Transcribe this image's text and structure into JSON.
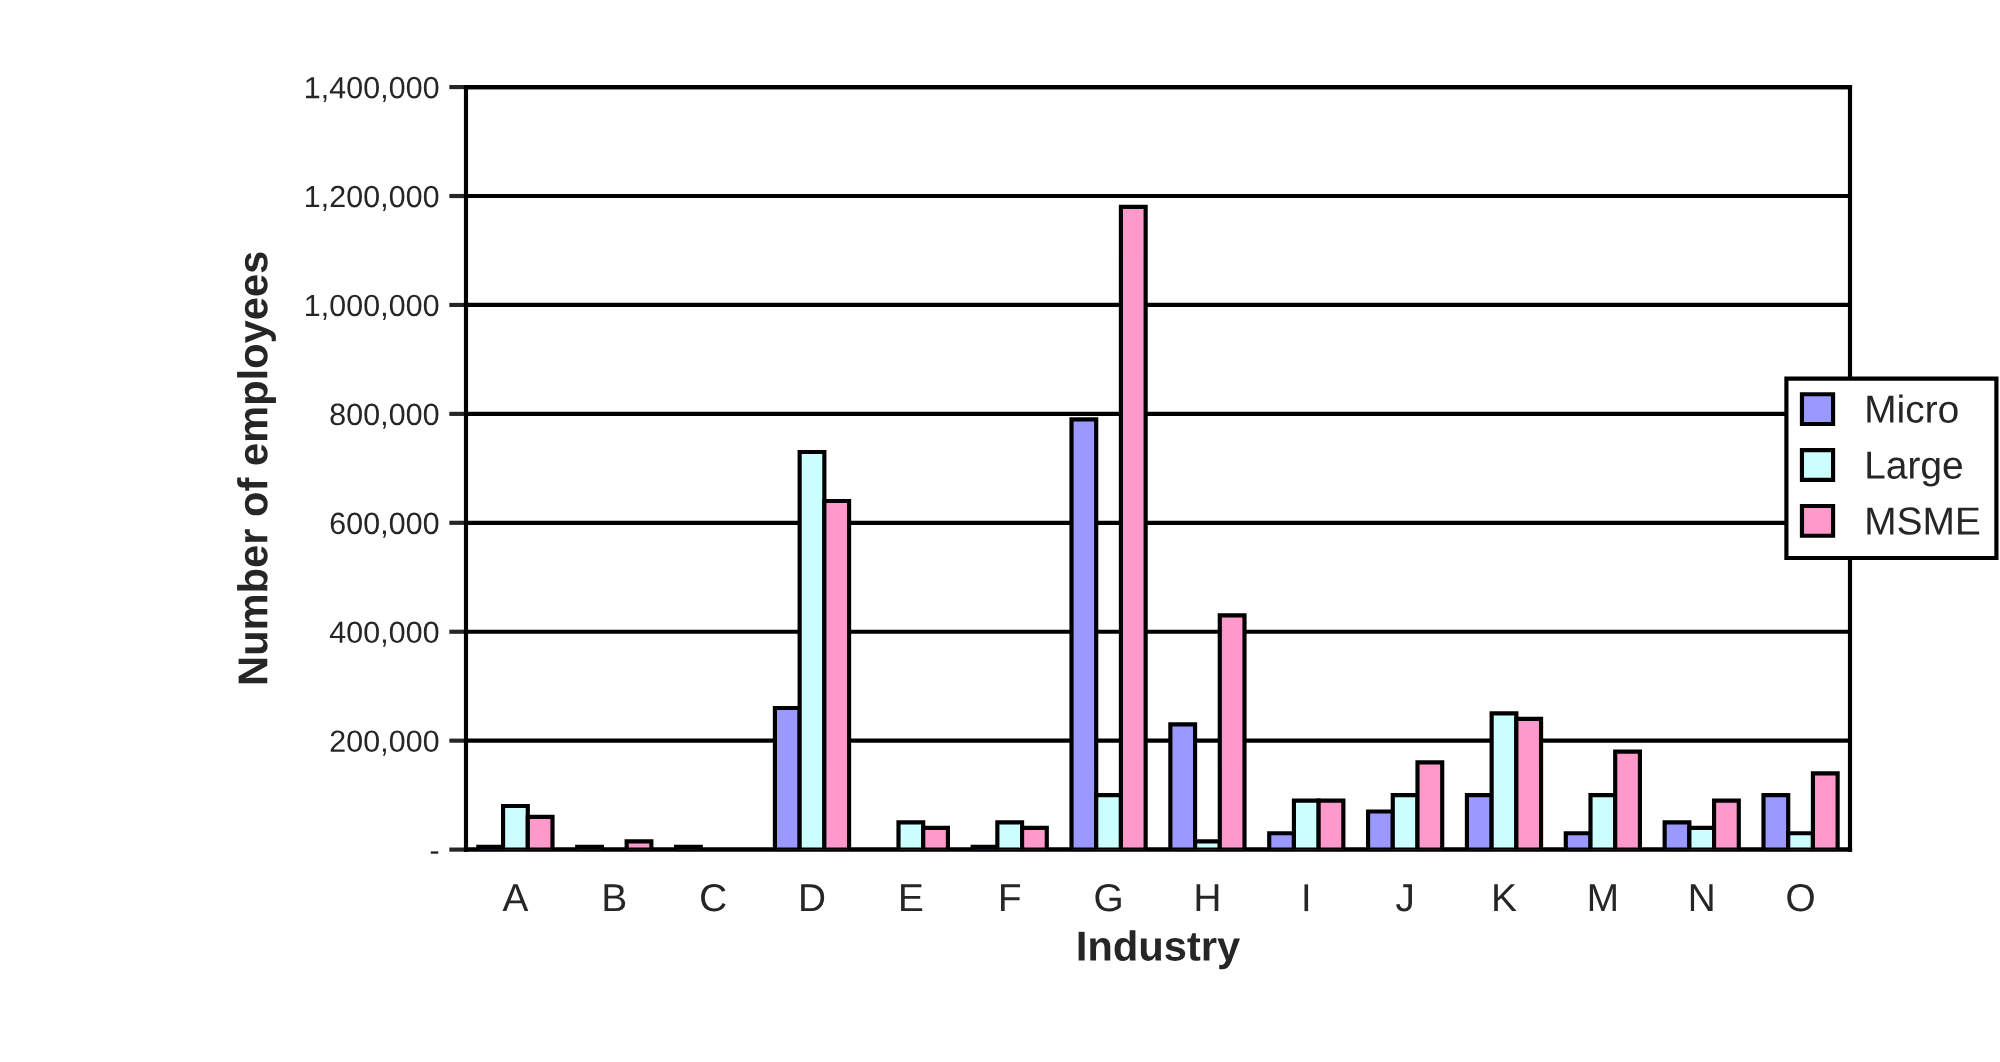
{
  "chart_data": {
    "type": "bar",
    "xlabel": "Industry",
    "ylabel": "Number of employees",
    "categories": [
      "A",
      "B",
      "C",
      "D",
      "E",
      "F",
      "G",
      "H",
      "I",
      "J",
      "K",
      "M",
      "N",
      "O"
    ],
    "series": [
      {
        "name": "Micro",
        "color": "#9999ff",
        "values": [
          5000,
          5000,
          5000,
          260000,
          null,
          5000,
          790000,
          230000,
          30000,
          70000,
          100000,
          30000,
          50000,
          100000
        ]
      },
      {
        "name": "Large",
        "color": "#ccffff",
        "values": [
          80000,
          null,
          null,
          730000,
          50000,
          50000,
          100000,
          15000,
          90000,
          100000,
          250000,
          100000,
          40000,
          30000
        ]
      },
      {
        "name": "MSME",
        "color": "#ff99cc",
        "values": [
          60000,
          15000,
          null,
          640000,
          40000,
          40000,
          1180000,
          430000,
          90000,
          160000,
          240000,
          180000,
          90000,
          140000
        ]
      }
    ],
    "ylim": [
      0,
      1400000
    ],
    "yticks": [
      {
        "value": 0,
        "label": "-"
      },
      {
        "value": 200000,
        "label": "200,000"
      },
      {
        "value": 400000,
        "label": "400,000"
      },
      {
        "value": 600000,
        "label": "600,000"
      },
      {
        "value": 800000,
        "label": "800,000"
      },
      {
        "value": 1000000,
        "label": "1,000,000"
      },
      {
        "value": 1200000,
        "label": "1,200,000"
      },
      {
        "value": 1400000,
        "label": "1,400,000"
      }
    ],
    "grid": "y",
    "legend": "right"
  }
}
